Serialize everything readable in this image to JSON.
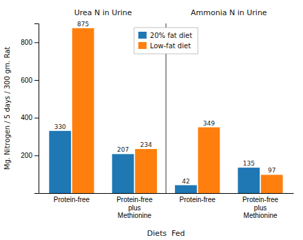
{
  "chart_data": {
    "type": "bar",
    "xlabel": "Diets  Fed",
    "ylabel": "Mg. Nitrogen / 5 days / 300 gm. Rat",
    "annotations": [
      "Urea N in Urine",
      "Ammonia N in Urine"
    ],
    "categories": [
      "Protein-free",
      "Protein-free\nplus\nMethionine",
      "Protein-free",
      "Protein-free\nplus\nMethionine"
    ],
    "series": [
      {
        "name": "20% fat diet",
        "values": [
          330,
          207,
          42,
          135
        ]
      },
      {
        "name": "Low-fat diet",
        "values": [
          875,
          234,
          349,
          97
        ]
      }
    ],
    "ylim": [
      0,
      900
    ],
    "yticks": [
      200,
      400,
      600,
      800
    ],
    "data_labels": true,
    "legend": "upper center"
  }
}
